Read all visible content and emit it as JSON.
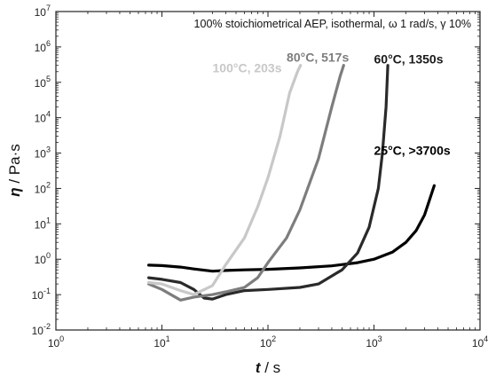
{
  "chart_data": {
    "type": "line",
    "title": "100% stoichiometrical AEP, isothermal, ω 1 rad/s, γ 10%",
    "xlabel": {
      "symbol": "t",
      "unit": " / s"
    },
    "ylabel": {
      "symbol": "η",
      "unit": " / Pa·s"
    },
    "x_scale": "log",
    "y_scale": "log",
    "xlim": [
      1,
      10000
    ],
    "ylim": [
      0.01,
      10000000
    ],
    "x_ticks": [
      {
        "base": "10",
        "exp": "0",
        "value": 1
      },
      {
        "base": "10",
        "exp": "1",
        "value": 10
      },
      {
        "base": "10",
        "exp": "2",
        "value": 100
      },
      {
        "base": "10",
        "exp": "3",
        "value": 1000
      },
      {
        "base": "10",
        "exp": "4",
        "value": 10000
      }
    ],
    "y_ticks": [
      {
        "base": "10",
        "exp": "-2",
        "value": 0.01
      },
      {
        "base": "10",
        "exp": "-1",
        "value": 0.1
      },
      {
        "base": "10",
        "exp": "0",
        "value": 1
      },
      {
        "base": "10",
        "exp": "1",
        "value": 10
      },
      {
        "base": "10",
        "exp": "2",
        "value": 100
      },
      {
        "base": "10",
        "exp": "3",
        "value": 1000
      },
      {
        "base": "10",
        "exp": "4",
        "value": 10000
      },
      {
        "base": "10",
        "exp": "5",
        "value": 100000
      },
      {
        "base": "10",
        "exp": "6",
        "value": 1000000
      },
      {
        "base": "10",
        "exp": "7",
        "value": 10000000
      }
    ],
    "grid": false,
    "series": [
      {
        "name": "25°C, >3700s",
        "color": "#000000",
        "points": [
          [
            7.5,
            0.68
          ],
          [
            10,
            0.66
          ],
          [
            15,
            0.6
          ],
          [
            20,
            0.53
          ],
          [
            30,
            0.46
          ],
          [
            40,
            0.48
          ],
          [
            60,
            0.5
          ],
          [
            100,
            0.52
          ],
          [
            200,
            0.57
          ],
          [
            400,
            0.65
          ],
          [
            700,
            0.8
          ],
          [
            1000,
            1.0
          ],
          [
            1500,
            1.6
          ],
          [
            2000,
            3.0
          ],
          [
            2500,
            6.5
          ],
          [
            3000,
            18
          ],
          [
            3700,
            120
          ]
        ]
      },
      {
        "name": "60°C, 1350s",
        "color": "#2a2a2a",
        "points": [
          [
            7.5,
            0.3
          ],
          [
            10,
            0.27
          ],
          [
            15,
            0.22
          ],
          [
            20,
            0.14
          ],
          [
            25,
            0.08
          ],
          [
            30,
            0.075
          ],
          [
            40,
            0.1
          ],
          [
            60,
            0.13
          ],
          [
            100,
            0.14
          ],
          [
            200,
            0.16
          ],
          [
            300,
            0.2
          ],
          [
            500,
            0.5
          ],
          [
            700,
            1.5
          ],
          [
            900,
            8
          ],
          [
            1100,
            100
          ],
          [
            1200,
            1000
          ],
          [
            1300,
            20000
          ],
          [
            1350,
            300000
          ]
        ]
      },
      {
        "name": "80°C, 517s",
        "color": "#7d7d7d",
        "points": [
          [
            7.5,
            0.2
          ],
          [
            10,
            0.14
          ],
          [
            15,
            0.07
          ],
          [
            20,
            0.085
          ],
          [
            30,
            0.1
          ],
          [
            40,
            0.12
          ],
          [
            60,
            0.16
          ],
          [
            80,
            0.3
          ],
          [
            100,
            0.8
          ],
          [
            150,
            4
          ],
          [
            200,
            25
          ],
          [
            300,
            700
          ],
          [
            400,
            20000
          ],
          [
            480,
            150000
          ],
          [
            517,
            300000
          ]
        ]
      },
      {
        "name": "100°C, 203s",
        "color": "#c8c8c8",
        "points": [
          [
            7.5,
            0.22
          ],
          [
            10,
            0.2
          ],
          [
            15,
            0.13
          ],
          [
            20,
            0.1
          ],
          [
            30,
            0.18
          ],
          [
            40,
            0.7
          ],
          [
            60,
            4
          ],
          [
            80,
            30
          ],
          [
            100,
            200
          ],
          [
            130,
            3000
          ],
          [
            160,
            50000
          ],
          [
            190,
            200000
          ],
          [
            203,
            300000
          ]
        ]
      }
    ],
    "annotations": [
      {
        "text": "100°C, 203s",
        "color": "#c8c8c8",
        "x": 30,
        "y": 190000
      },
      {
        "text": "80°C, 517s",
        "color": "#7d7d7d",
        "x": 150,
        "y": 380000
      },
      {
        "text": "60°C, 1350s",
        "color": "#1a1a1a",
        "x": 1000,
        "y": 340000
      },
      {
        "text": "25°C, >3700s",
        "color": "#000000",
        "x": 1000,
        "y": 900
      }
    ]
  }
}
